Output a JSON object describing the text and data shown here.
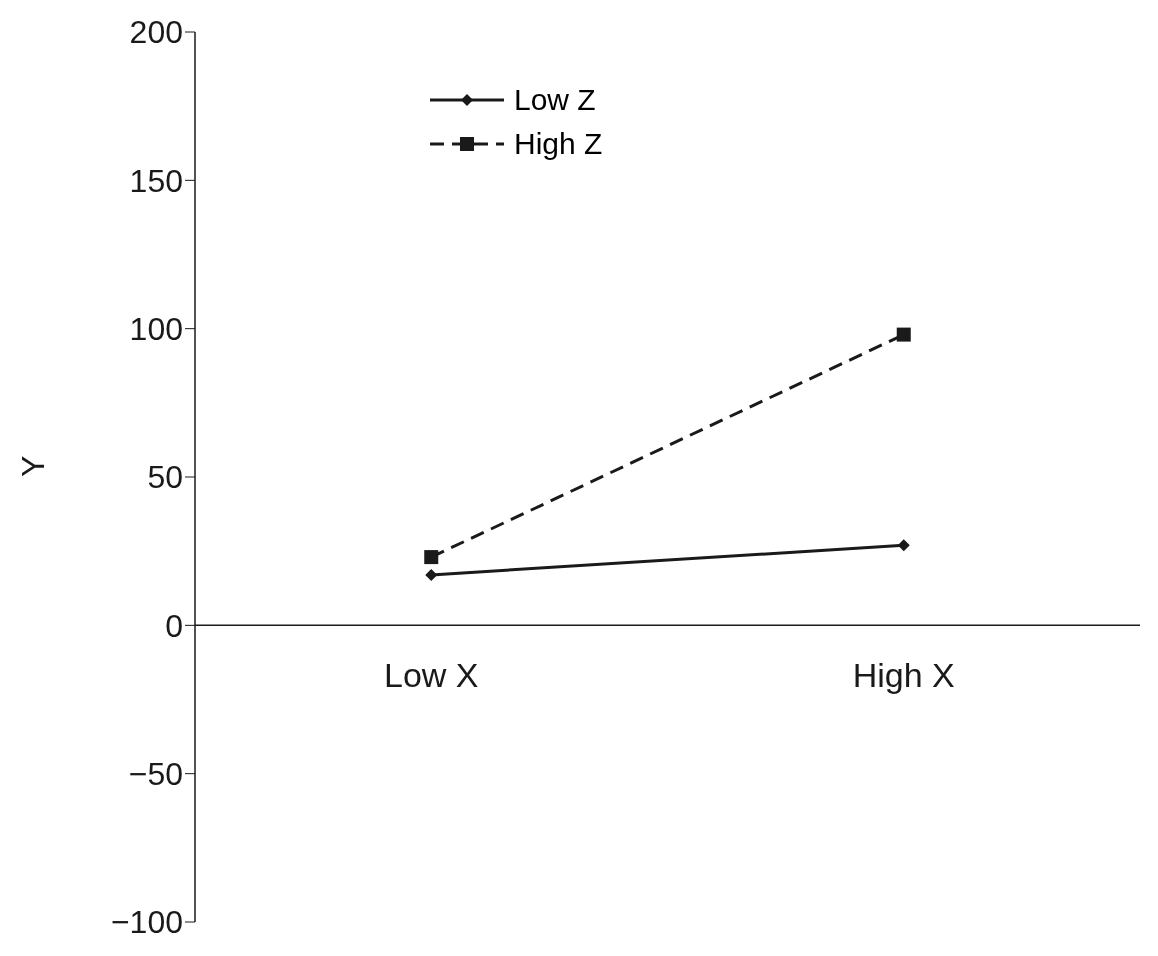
{
  "chart_data": {
    "type": "line",
    "ylabel": "Y",
    "categories": [
      "Low X",
      "High X"
    ],
    "series": [
      {
        "name": "Low Z",
        "color": "#1a1a1a",
        "values": [
          17,
          27
        ],
        "marker": "diamond",
        "line_style": "solid"
      },
      {
        "name": "High Z",
        "color": "#1a1a1a",
        "values": [
          23,
          98
        ],
        "marker": "square",
        "line_style": "dashed"
      }
    ],
    "ylim": [
      -100,
      200
    ],
    "yticks": [
      {
        "value": -100,
        "label": "−100"
      },
      {
        "value": -50,
        "label": "−50"
      },
      0,
      50,
      100,
      150,
      200
    ],
    "grid": false,
    "legend": "top left"
  }
}
